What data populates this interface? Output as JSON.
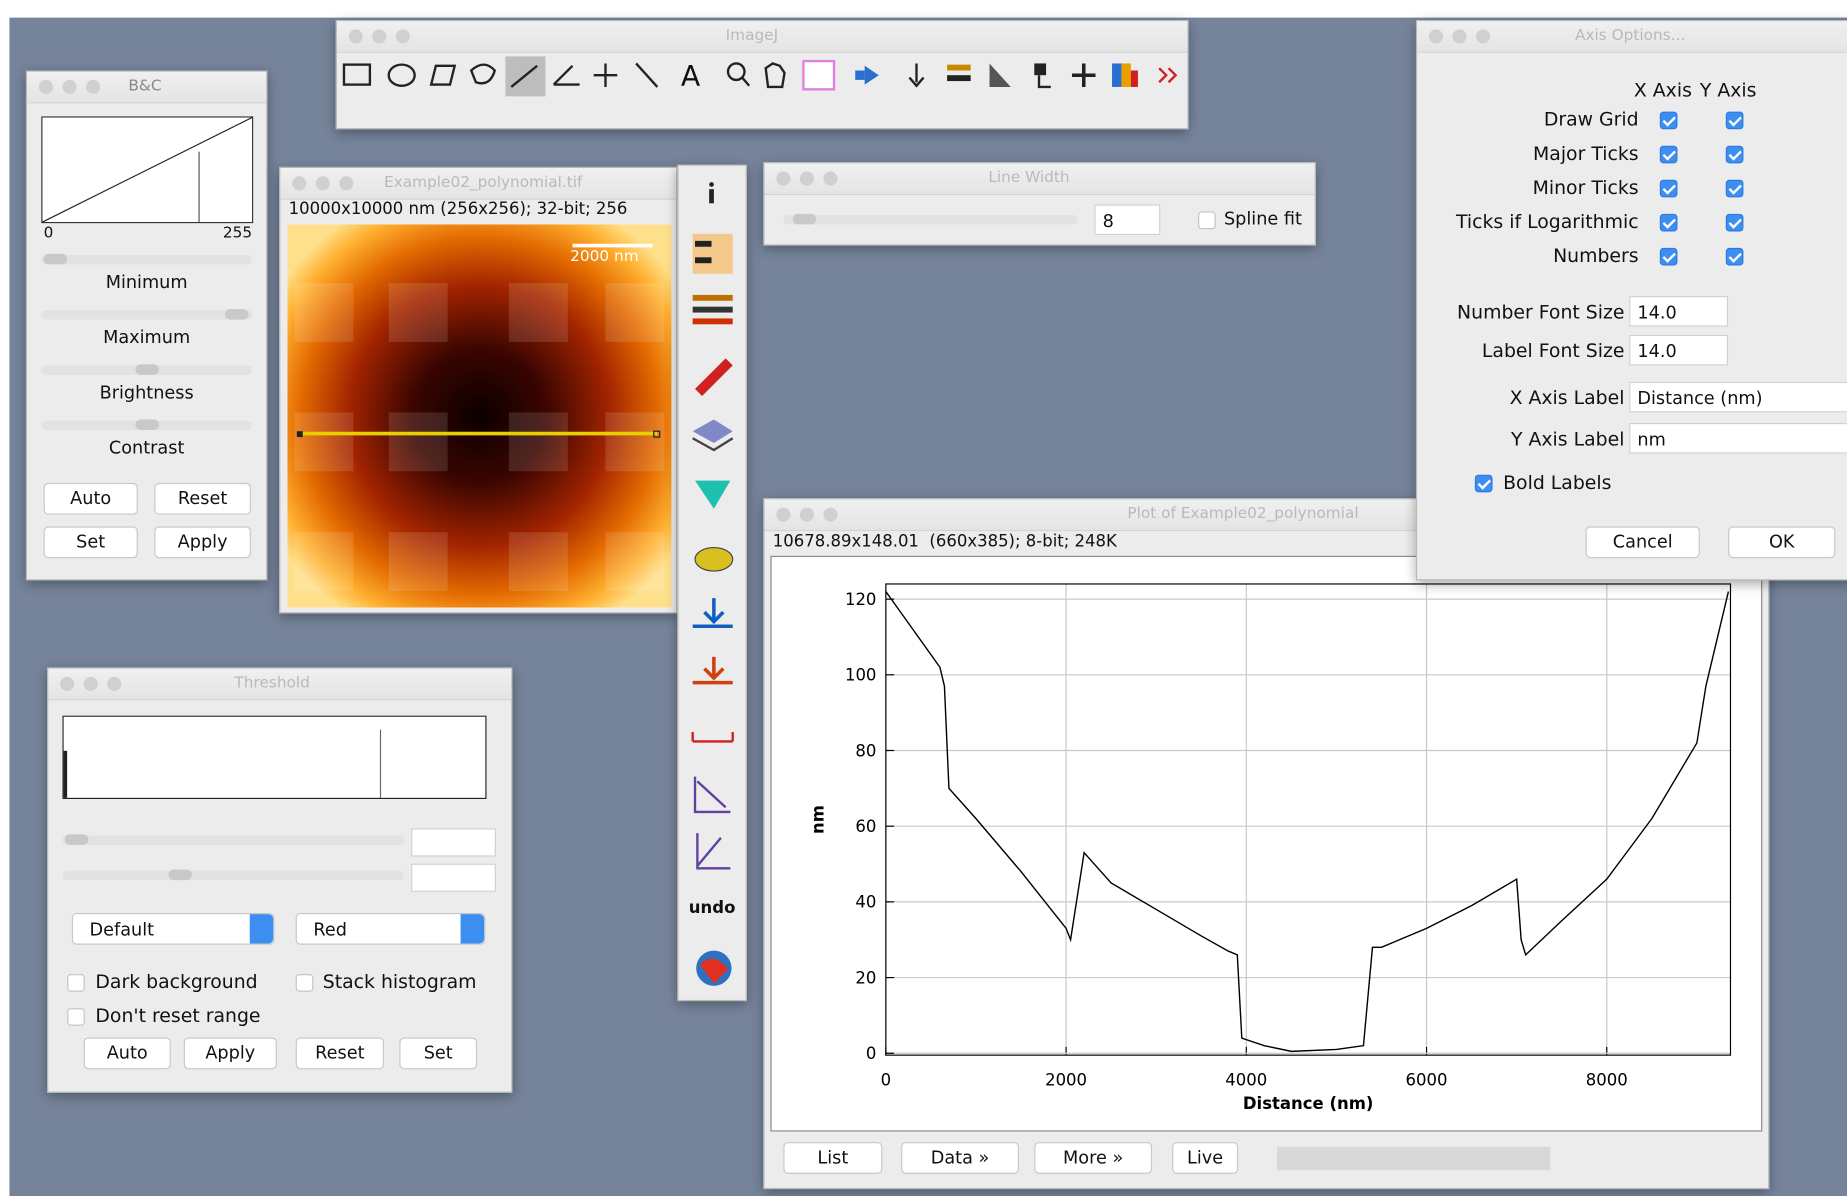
{
  "imagej_toolbar": {
    "title": "ImageJ",
    "text_tool": "A"
  },
  "bc": {
    "title": "B&C",
    "min_label": "0",
    "max_label": "255",
    "labels": [
      "Minimum",
      "Maximum",
      "Brightness",
      "Contrast"
    ],
    "buttons": [
      "Auto",
      "Reset",
      "Set",
      "Apply"
    ]
  },
  "image_window": {
    "title": "Example02_polynomial.tif",
    "info": "10000x10000 nm (256x256); 32-bit; 256",
    "scale_bar": "2000 nm"
  },
  "tools": {
    "undo": "undo"
  },
  "line_width": {
    "title": "Line Width",
    "value": "8",
    "spline_fit": {
      "label": "Spline fit",
      "checked": false
    }
  },
  "axis_options": {
    "title": "Axis Options...",
    "columns": [
      "X Axis",
      "Y Axis"
    ],
    "rows": [
      {
        "label": "Draw Grid",
        "x": true,
        "y": true
      },
      {
        "label": "Major Ticks",
        "x": true,
        "y": true
      },
      {
        "label": "Minor Ticks",
        "x": true,
        "y": true
      },
      {
        "label": "Ticks if Logarithmic",
        "x": true,
        "y": true
      },
      {
        "label": "Numbers",
        "x": true,
        "y": true
      }
    ],
    "number_font_size": {
      "label": "Number Font Size",
      "value": "14.0"
    },
    "label_font_size": {
      "label": "Label Font Size",
      "value": "14.0"
    },
    "x_axis_label": {
      "label": "X Axis Label",
      "value": "Distance (nm)"
    },
    "y_axis_label": {
      "label": "Y Axis Label",
      "value": "nm"
    },
    "bold_labels": {
      "label": "Bold Labels",
      "checked": true
    },
    "buttons": [
      "Cancel",
      "OK"
    ]
  },
  "threshold": {
    "title": "Threshold",
    "method": "Default",
    "mode": "Red",
    "checkboxes": [
      {
        "label": "Dark background",
        "checked": false
      },
      {
        "label": "Stack histogram",
        "checked": false
      },
      {
        "label": "Don't reset range",
        "checked": false
      }
    ],
    "buttons": [
      "Auto",
      "Apply",
      "Reset",
      "Set"
    ]
  },
  "plot_window": {
    "title": "Plot of Example02_polynomial",
    "info": "10678.89x148.01  (660x385); 8-bit; 248K",
    "buttons": [
      "List",
      "Data »",
      "More »",
      "Live"
    ],
    "plot": {
      "type": "line",
      "x_label": "Distance (nm)",
      "y_label": "nm",
      "grid": true,
      "color": "#000000",
      "xlim": [
        0,
        9373
      ],
      "ylim": [
        -0.5,
        124
      ],
      "xticks": [
        0,
        2000,
        4000,
        6000,
        8000
      ],
      "yticks": [
        0,
        20,
        40,
        60,
        80,
        100,
        120
      ],
      "x": [
        0,
        300,
        600,
        650,
        700,
        1000,
        1500,
        2000,
        2050,
        2200,
        2500,
        3000,
        3500,
        3800,
        3900,
        3950,
        4200,
        4500,
        5000,
        5300,
        5400,
        5500,
        6000,
        6500,
        7000,
        7050,
        7100,
        7500,
        8000,
        8500,
        9000,
        9100,
        9350
      ],
      "y": [
        122,
        112,
        102,
        97,
        70,
        62,
        48,
        33,
        30,
        53,
        45,
        38,
        31,
        27,
        26,
        4,
        2,
        0.5,
        1,
        2,
        28,
        28,
        33,
        39,
        46,
        30,
        26,
        35,
        46,
        62,
        82,
        97,
        122
      ]
    }
  }
}
